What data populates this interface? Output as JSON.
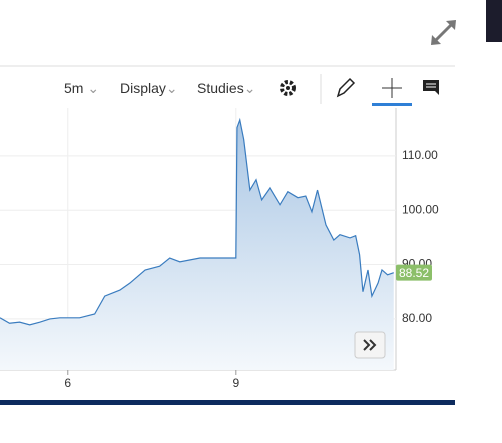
{
  "toolbar": {
    "interval": "5m",
    "display": "Display",
    "studies": "Studies"
  },
  "chart_data": {
    "type": "area",
    "x": [
      4.79,
      4.96,
      5.14,
      5.32,
      5.5,
      5.68,
      5.86,
      6.21,
      6.48,
      6.66,
      6.93,
      7.11,
      7.38,
      7.64,
      7.82,
      8.0,
      8.36,
      9.0,
      9.02,
      9.07,
      9.14,
      9.25,
      9.36,
      9.46,
      9.61,
      9.79,
      9.93,
      10.11,
      10.25,
      10.36,
      10.46,
      10.61,
      10.75,
      10.86,
      11.04,
      11.14,
      11.21,
      11.27,
      11.36,
      11.43,
      11.54,
      11.61,
      11.71,
      11.82
    ],
    "series": [
      {
        "color": "#3a7cbf",
        "values": [
          80.2,
          79.2,
          79.4,
          78.9,
          79.4,
          80.0,
          80.2,
          80.2,
          80.9,
          84.2,
          85.3,
          86.6,
          89.0,
          89.7,
          91.2,
          90.5,
          91.2,
          91.2,
          115.2,
          116.6,
          113.0,
          103.7,
          105.6,
          101.9,
          104.1,
          101.0,
          103.4,
          102.3,
          102.6,
          99.7,
          103.7,
          97.3,
          94.5,
          95.5,
          94.9,
          95.3,
          91.8,
          85.0,
          89.0,
          84.2,
          86.6,
          89.0,
          88.1,
          88.5
        ]
      }
    ],
    "last_price": 88.52,
    "xlim": [
      4.79,
      11.86
    ],
    "ylim": [
      70.6,
      118.8
    ],
    "xticks": [
      6,
      9
    ],
    "yticks": [
      {
        "value": 80,
        "label": "80.00"
      },
      {
        "value": 90,
        "label": "90.00"
      },
      {
        "value": 100,
        "label": "100.00"
      },
      {
        "value": 110,
        "label": "110.00"
      }
    ],
    "grid": true
  }
}
